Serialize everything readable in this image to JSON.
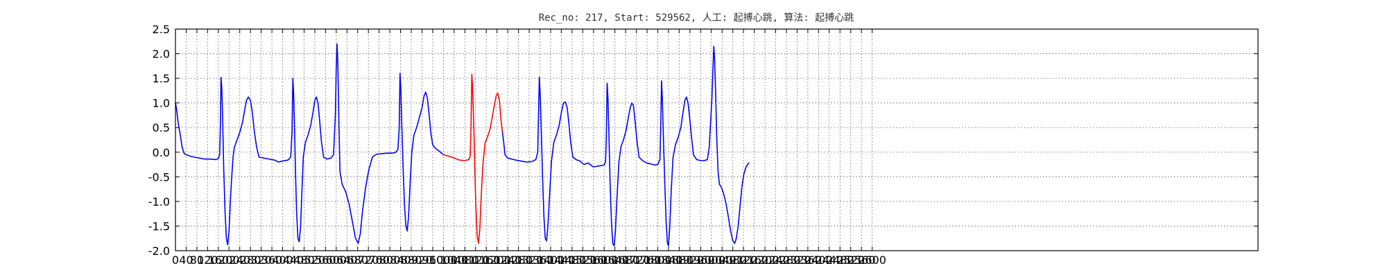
{
  "chart_data": {
    "type": "line",
    "title": "Rec_no: 217, Start: 529562, 人工: 起搏心跳, 算法: 起搏心跳",
    "xlabel": "",
    "ylabel": "",
    "xlim": [
      0,
      4040
    ],
    "ylim": [
      -2.0,
      2.5
    ],
    "grid": true,
    "yticks": [
      2.5,
      2.0,
      1.5,
      1.0,
      0.5,
      0.0,
      -0.5,
      -1.0,
      -1.5,
      -2.0
    ],
    "xticks": [
      0,
      40,
      80,
      120,
      160,
      200,
      240,
      280,
      320,
      360,
      400,
      440,
      480,
      520,
      560,
      600,
      640,
      680,
      720,
      760,
      800,
      840,
      880,
      920,
      960,
      1000,
      1040,
      1080,
      1120,
      1160,
      1200,
      1240,
      1280,
      1320,
      1360,
      1400,
      1440,
      1480,
      1520,
      1560,
      1600,
      1640,
      1680,
      1720,
      1760,
      1800,
      1840,
      1880,
      1920,
      1960,
      2000,
      2040,
      2080,
      2120,
      2160,
      2200,
      2240,
      2280,
      2320,
      2360,
      2400,
      2440,
      2480,
      2520,
      2560,
      2600
    ],
    "series": [
      {
        "color": "#0000ff",
        "points": [
          [
            0,
            1.0
          ],
          [
            5,
            0.85
          ],
          [
            10,
            0.6
          ],
          [
            18,
            0.35
          ],
          [
            25,
            0.1
          ],
          [
            32,
            -0.02
          ],
          [
            40,
            -0.05
          ],
          [
            55,
            -0.08
          ],
          [
            70,
            -0.1
          ],
          [
            90,
            -0.12
          ],
          [
            110,
            -0.14
          ],
          [
            130,
            -0.14
          ],
          [
            150,
            -0.15
          ],
          [
            160,
            -0.13
          ],
          [
            165,
            -0.05
          ],
          [
            168,
            0.6
          ],
          [
            170,
            1.52
          ],
          [
            173,
            1.3
          ],
          [
            176,
            0.7
          ],
          [
            180,
            -0.3
          ],
          [
            185,
            -1.2
          ],
          [
            190,
            -1.75
          ],
          [
            195,
            -1.88
          ],
          [
            200,
            -1.6
          ],
          [
            205,
            -1.0
          ],
          [
            210,
            -0.5
          ],
          [
            215,
            -0.1
          ],
          [
            220,
            0.1
          ],
          [
            230,
            0.25
          ],
          [
            240,
            0.4
          ],
          [
            250,
            0.6
          ],
          [
            258,
            0.85
          ],
          [
            265,
            1.05
          ],
          [
            272,
            1.12
          ],
          [
            280,
            1.05
          ],
          [
            287,
            0.8
          ],
          [
            295,
            0.4
          ],
          [
            303,
            0.1
          ],
          [
            312,
            -0.1
          ],
          [
            330,
            -0.12
          ],
          [
            350,
            -0.14
          ],
          [
            370,
            -0.16
          ],
          [
            385,
            -0.2
          ],
          [
            400,
            -0.18
          ],
          [
            420,
            -0.16
          ],
          [
            430,
            -0.1
          ],
          [
            435,
            0.4
          ],
          [
            438,
            1.5
          ],
          [
            441,
            1.2
          ],
          [
            444,
            0.6
          ],
          [
            448,
            -0.4
          ],
          [
            452,
            -1.2
          ],
          [
            457,
            -1.75
          ],
          [
            462,
            -1.82
          ],
          [
            467,
            -1.5
          ],
          [
            472,
            -0.8
          ],
          [
            477,
            -0.1
          ],
          [
            485,
            0.2
          ],
          [
            495,
            0.35
          ],
          [
            505,
            0.55
          ],
          [
            513,
            0.8
          ],
          [
            520,
            1.05
          ],
          [
            526,
            1.12
          ],
          [
            532,
            1.0
          ],
          [
            538,
            0.65
          ],
          [
            545,
            0.2
          ],
          [
            553,
            -0.1
          ],
          [
            565,
            -0.14
          ],
          [
            580,
            -0.12
          ],
          [
            590,
            -0.05
          ],
          [
            597,
            0.8
          ],
          [
            600,
            1.7
          ],
          [
            603,
            2.2
          ],
          [
            606,
            1.8
          ],
          [
            610,
            0.6
          ],
          [
            614,
            -0.4
          ],
          [
            622,
            -0.65
          ],
          [
            635,
            -0.8
          ],
          [
            648,
            -1.05
          ],
          [
            660,
            -1.4
          ],
          [
            672,
            -1.75
          ],
          [
            682,
            -1.85
          ],
          [
            690,
            -1.65
          ],
          [
            698,
            -1.2
          ],
          [
            710,
            -0.7
          ],
          [
            722,
            -0.35
          ],
          [
            735,
            -0.1
          ],
          [
            750,
            -0.04
          ],
          [
            770,
            -0.03
          ],
          [
            790,
            -0.02
          ],
          [
            805,
            -0.02
          ],
          [
            820,
            -0.01
          ],
          [
            830,
            0.05
          ],
          [
            835,
            0.5
          ],
          [
            838,
            1.6
          ],
          [
            841,
            1.3
          ],
          [
            845,
            0.5
          ],
          [
            850,
            -0.4
          ],
          [
            855,
            -1.1
          ],
          [
            860,
            -1.5
          ],
          [
            865,
            -1.6
          ],
          [
            870,
            -1.3
          ],
          [
            876,
            -0.6
          ],
          [
            882,
            0.0
          ],
          [
            890,
            0.35
          ],
          [
            900,
            0.5
          ],
          [
            910,
            0.7
          ],
          [
            920,
            0.9
          ],
          [
            928,
            1.15
          ],
          [
            934,
            1.22
          ],
          [
            940,
            1.1
          ],
          [
            946,
            0.8
          ],
          [
            953,
            0.4
          ],
          [
            960,
            0.15
          ],
          [
            970,
            0.08
          ],
          [
            985,
            0.02
          ],
          [
            1000,
            -0.05
          ]
        ]
      },
      {
        "color": "#ff0000",
        "points": [
          [
            1000,
            -0.05
          ],
          [
            1020,
            -0.08
          ],
          [
            1040,
            -0.12
          ],
          [
            1060,
            -0.16
          ],
          [
            1080,
            -0.17
          ],
          [
            1095,
            -0.15
          ],
          [
            1100,
            -0.08
          ],
          [
            1103,
            0.5
          ],
          [
            1106,
            1.58
          ],
          [
            1109,
            1.3
          ],
          [
            1113,
            0.6
          ],
          [
            1117,
            -0.3
          ],
          [
            1121,
            -1.1
          ],
          [
            1126,
            -1.7
          ],
          [
            1131,
            -1.85
          ],
          [
            1136,
            -1.55
          ],
          [
            1141,
            -0.9
          ],
          [
            1148,
            -0.2
          ],
          [
            1156,
            0.2
          ],
          [
            1165,
            0.32
          ],
          [
            1173,
            0.45
          ],
          [
            1182,
            0.7
          ],
          [
            1190,
            0.95
          ],
          [
            1197,
            1.15
          ],
          [
            1203,
            1.2
          ],
          [
            1209,
            1.05
          ],
          [
            1215,
            0.65
          ],
          [
            1220,
            0.42
          ]
        ]
      },
      {
        "color": "#0000ff",
        "points": [
          [
            1220,
            0.42
          ],
          [
            1225,
            0.2
          ],
          [
            1230,
            -0.05
          ],
          [
            1240,
            -0.12
          ],
          [
            1255,
            -0.14
          ],
          [
            1270,
            -0.16
          ],
          [
            1290,
            -0.18
          ],
          [
            1310,
            -0.2
          ],
          [
            1330,
            -0.19
          ],
          [
            1345,
            -0.15
          ],
          [
            1352,
            0.0
          ],
          [
            1355,
            0.8
          ],
          [
            1358,
            1.52
          ],
          [
            1361,
            1.2
          ],
          [
            1365,
            0.5
          ],
          [
            1370,
            -0.5
          ],
          [
            1375,
            -1.3
          ],
          [
            1380,
            -1.75
          ],
          [
            1385,
            -1.8
          ],
          [
            1390,
            -1.5
          ],
          [
            1396,
            -0.9
          ],
          [
            1403,
            -0.2
          ],
          [
            1412,
            0.2
          ],
          [
            1422,
            0.35
          ],
          [
            1432,
            0.55
          ],
          [
            1440,
            0.8
          ],
          [
            1448,
            1.0
          ],
          [
            1455,
            1.02
          ],
          [
            1462,
            0.9
          ],
          [
            1468,
            0.6
          ],
          [
            1475,
            0.2
          ],
          [
            1483,
            -0.1
          ],
          [
            1495,
            -0.15
          ],
          [
            1510,
            -0.18
          ],
          [
            1525,
            -0.25
          ],
          [
            1540,
            -0.22
          ],
          [
            1560,
            -0.3
          ],
          [
            1580,
            -0.28
          ],
          [
            1600,
            -0.26
          ],
          [
            1605,
            -0.2
          ],
          [
            1608,
            0.3
          ],
          [
            1611,
            1.4
          ],
          [
            1614,
            1.1
          ],
          [
            1618,
            0.3
          ],
          [
            1622,
            -0.6
          ],
          [
            1627,
            -1.4
          ],
          [
            1632,
            -1.85
          ],
          [
            1637,
            -1.9
          ],
          [
            1642,
            -1.6
          ],
          [
            1648,
            -0.9
          ],
          [
            1655,
            -0.2
          ],
          [
            1663,
            0.12
          ],
          [
            1672,
            0.25
          ],
          [
            1682,
            0.45
          ],
          [
            1690,
            0.7
          ],
          [
            1697,
            0.9
          ],
          [
            1703,
            1.0
          ],
          [
            1709,
            0.95
          ],
          [
            1715,
            0.65
          ],
          [
            1722,
            0.25
          ],
          [
            1730,
            -0.1
          ],
          [
            1745,
            -0.18
          ],
          [
            1760,
            -0.22
          ],
          [
            1775,
            -0.24
          ],
          [
            1790,
            -0.26
          ],
          [
            1800,
            -0.25
          ],
          [
            1808,
            -0.15
          ],
          [
            1811,
            0.5
          ],
          [
            1814,
            1.45
          ],
          [
            1817,
            1.1
          ],
          [
            1821,
            0.3
          ],
          [
            1826,
            -0.6
          ],
          [
            1831,
            -1.4
          ],
          [
            1836,
            -1.85
          ],
          [
            1840,
            -1.9
          ],
          [
            1845,
            -1.5
          ],
          [
            1850,
            -0.8
          ],
          [
            1857,
            -0.1
          ],
          [
            1866,
            0.15
          ],
          [
            1876,
            0.3
          ],
          [
            1886,
            0.5
          ],
          [
            1894,
            0.8
          ],
          [
            1901,
            1.05
          ],
          [
            1907,
            1.12
          ],
          [
            1913,
            1.0
          ],
          [
            1919,
            0.7
          ],
          [
            1926,
            0.3
          ],
          [
            1933,
            -0.05
          ],
          [
            1945,
            -0.15
          ],
          [
            1960,
            -0.17
          ],
          [
            1975,
            -0.17
          ],
          [
            1985,
            -0.15
          ],
          [
            1992,
            0.1
          ],
          [
            1997,
            0.6
          ],
          [
            2002,
            1.1
          ],
          [
            2006,
            1.7
          ],
          [
            2009,
            2.15
          ],
          [
            2012,
            1.9
          ],
          [
            2016,
            1.2
          ],
          [
            2020,
            0.3
          ],
          [
            2025,
            -0.4
          ],
          [
            2030,
            -0.65
          ],
          [
            2038,
            -0.72
          ],
          [
            2046,
            -0.85
          ],
          [
            2055,
            -1.05
          ],
          [
            2063,
            -1.3
          ],
          [
            2072,
            -1.6
          ],
          [
            2080,
            -1.8
          ],
          [
            2087,
            -1.85
          ],
          [
            2093,
            -1.75
          ],
          [
            2100,
            -1.5
          ],
          [
            2107,
            -1.1
          ],
          [
            2114,
            -0.7
          ],
          [
            2121,
            -0.45
          ],
          [
            2128,
            -0.32
          ],
          [
            2135,
            -0.25
          ],
          [
            2140,
            -0.22
          ]
        ]
      }
    ]
  }
}
